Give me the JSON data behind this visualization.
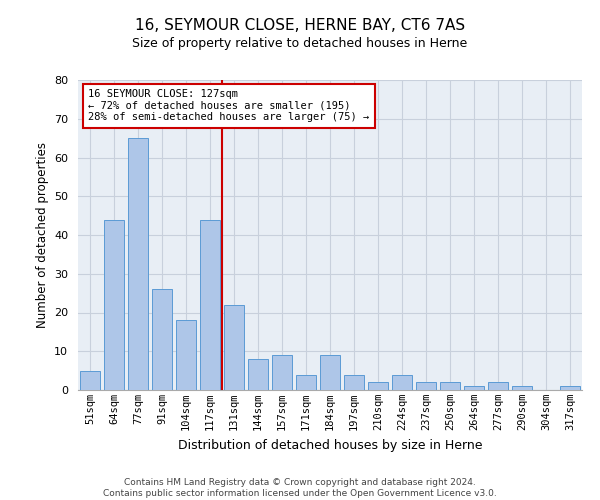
{
  "title": "16, SEYMOUR CLOSE, HERNE BAY, CT6 7AS",
  "subtitle": "Size of property relative to detached houses in Herne",
  "xlabel": "Distribution of detached houses by size in Herne",
  "ylabel": "Number of detached properties",
  "categories": [
    "51sqm",
    "64sqm",
    "77sqm",
    "91sqm",
    "104sqm",
    "117sqm",
    "131sqm",
    "144sqm",
    "157sqm",
    "171sqm",
    "184sqm",
    "197sqm",
    "210sqm",
    "224sqm",
    "237sqm",
    "250sqm",
    "264sqm",
    "277sqm",
    "290sqm",
    "304sqm",
    "317sqm"
  ],
  "values": [
    5,
    44,
    65,
    26,
    18,
    44,
    22,
    8,
    9,
    4,
    9,
    4,
    2,
    4,
    2,
    2,
    1,
    2,
    1,
    0,
    1
  ],
  "bar_color": "#aec6e8",
  "bar_edge_color": "#5b9bd5",
  "marker_color": "#cc0000",
  "annotation_line1": "16 SEYMOUR CLOSE: 127sqm",
  "annotation_line2": "← 72% of detached houses are smaller (195)",
  "annotation_line3": "28% of semi-detached houses are larger (75) →",
  "ylim": [
    0,
    80
  ],
  "yticks": [
    0,
    10,
    20,
    30,
    40,
    50,
    60,
    70,
    80
  ],
  "grid_color": "#c8d0dc",
  "bg_color": "#e8eef5",
  "footer": "Contains HM Land Registry data © Crown copyright and database right 2024.\nContains public sector information licensed under the Open Government Licence v3.0."
}
